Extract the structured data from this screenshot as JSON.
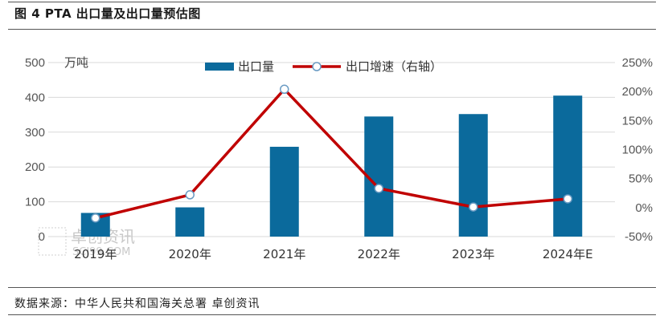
{
  "figure": {
    "title": "图 4 PTA 出口量及出口量预估图",
    "source": "数据来源：中华人民共和国海关总署 卓创资讯",
    "watermark": {
      "cn": "卓创资讯",
      "en": "SCI99.COM"
    }
  },
  "colors": {
    "bar": "#0b6a9c",
    "line": "#c00000",
    "marker_fill": "#ffffff",
    "marker_stroke": "#6a9bc3",
    "grid": "#d9d9d9"
  },
  "chart_data": {
    "type": "bar",
    "title": "",
    "categories": [
      "2019年",
      "2020年",
      "2021年",
      "2022年",
      "2023年",
      "2024年E"
    ],
    "left_axis": {
      "unit_label": "万吨",
      "ylim": [
        0,
        500
      ],
      "ticks": [
        "0",
        "100",
        "200",
        "300",
        "400",
        "500"
      ]
    },
    "right_axis": {
      "ylim": [
        -50,
        250
      ],
      "ticks": [
        "-50%",
        "0%",
        "50%",
        "100%",
        "150%",
        "200%",
        "250%"
      ]
    },
    "series": [
      {
        "name": "出口量",
        "type": "bar",
        "axis": "left",
        "values": [
          68,
          84,
          258,
          345,
          352,
          405
        ]
      },
      {
        "name": "出口增速（右轴）",
        "type": "line",
        "axis": "right",
        "values": [
          -18,
          22,
          204,
          33,
          1,
          15
        ]
      }
    ],
    "legend_position": "top-center",
    "grid": true
  }
}
